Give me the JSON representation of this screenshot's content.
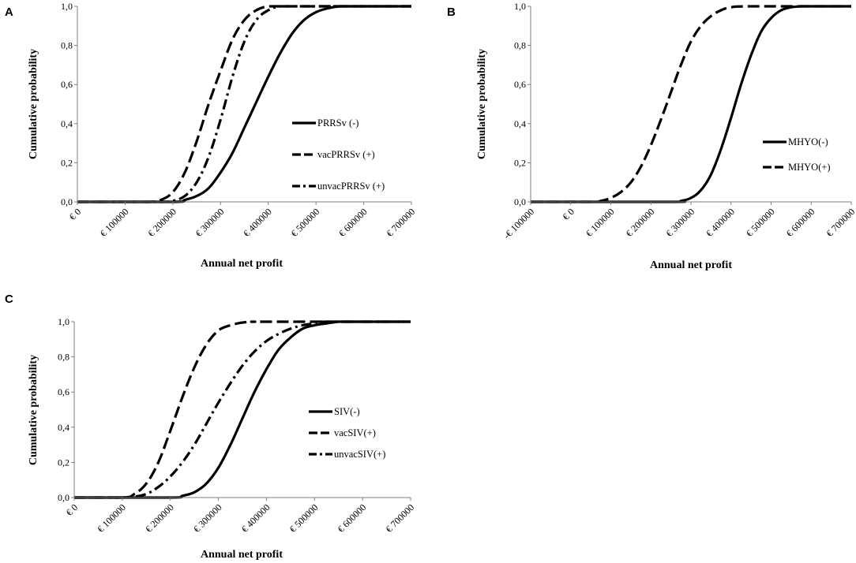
{
  "chart_data": [
    {
      "panel": "A",
      "type": "line",
      "title": "",
      "xlabel": "Annual net profit",
      "ylabel": "Cumulative probability",
      "xticks": [
        0,
        100000,
        200000,
        300000,
        400000,
        500000,
        600000,
        700000
      ],
      "xtick_labels": [
        "€ 0",
        "€ 100000",
        "€ 200000",
        "€ 300000",
        "€ 400000",
        "€ 500000",
        "€ 600000",
        "€ 700000"
      ],
      "yticks": [
        0,
        0.2,
        0.4,
        0.6,
        0.8,
        1.0
      ],
      "ytick_labels": [
        "0,0",
        "0,2",
        "0,4",
        "0,6",
        "0,8",
        "1,0"
      ],
      "xlim": [
        0,
        700000
      ],
      "ylim": [
        0,
        1
      ],
      "legend_position": "right-middle",
      "series": [
        {
          "name": "PRRSv (-)",
          "style": "solid",
          "x": [
            0,
            200000,
            225000,
            250000,
            275000,
            300000,
            325000,
            350000,
            375000,
            400000,
            425000,
            450000,
            475000,
            500000,
            525000,
            550000,
            575000,
            600000,
            650000,
            700000
          ],
          "y": [
            0,
            0,
            0.01,
            0.03,
            0.07,
            0.15,
            0.25,
            0.38,
            0.51,
            0.64,
            0.76,
            0.86,
            0.93,
            0.97,
            0.99,
            1.0,
            1.0,
            1.0,
            1.0,
            1.0
          ]
        },
        {
          "name": "vacPRRSv (+)",
          "style": "dashed",
          "x": [
            0,
            150000,
            175000,
            200000,
            225000,
            250000,
            275000,
            300000,
            325000,
            350000,
            375000,
            400000,
            425000,
            450000,
            500000,
            700000
          ],
          "y": [
            0,
            0,
            0.01,
            0.05,
            0.15,
            0.31,
            0.5,
            0.67,
            0.83,
            0.93,
            0.98,
            1.0,
            1.0,
            1.0,
            1.0,
            1.0
          ]
        },
        {
          "name": "unvacPRRSv (+)",
          "style": "dash-dot",
          "x": [
            0,
            175000,
            200000,
            225000,
            250000,
            275000,
            300000,
            325000,
            350000,
            375000,
            400000,
            425000,
            450000,
            475000,
            500000,
            700000
          ],
          "y": [
            0,
            0,
            0.005,
            0.03,
            0.1,
            0.23,
            0.42,
            0.64,
            0.82,
            0.93,
            0.98,
            1.0,
            1.0,
            1.0,
            1.0,
            1.0
          ]
        }
      ]
    },
    {
      "panel": "B",
      "type": "line",
      "title": "",
      "xlabel": "Annual net profit",
      "ylabel": "Cumulative probability",
      "xticks": [
        -100000,
        0,
        100000,
        200000,
        300000,
        400000,
        500000,
        600000,
        700000
      ],
      "xtick_labels": [
        "-€ 100000",
        "€ 0",
        "€ 100000",
        "€ 200000",
        "€ 300000",
        "€ 400000",
        "€ 500000",
        "€ 600000",
        "€ 700000"
      ],
      "yticks": [
        0,
        0.2,
        0.4,
        0.6,
        0.8,
        1.0
      ],
      "ytick_labels": [
        "0,0",
        "0,2",
        "0,4",
        "0,6",
        "0,8",
        "1,0"
      ],
      "xlim": [
        -100000,
        700000
      ],
      "ylim": [
        0,
        1
      ],
      "legend_position": "right-middle",
      "series": [
        {
          "name": "MHYO(-)",
          "style": "solid",
          "x": [
            -100000,
            250000,
            275000,
            300000,
            325000,
            350000,
            375000,
            400000,
            425000,
            450000,
            475000,
            500000,
            525000,
            550000,
            575000,
            600000,
            700000
          ],
          "y": [
            0,
            0,
            0.005,
            0.02,
            0.06,
            0.14,
            0.27,
            0.43,
            0.6,
            0.75,
            0.87,
            0.94,
            0.98,
            0.995,
            1.0,
            1.0,
            1.0
          ]
        },
        {
          "name": "MHYO(+)",
          "style": "dashed",
          "x": [
            -100000,
            50000,
            75000,
            100000,
            125000,
            150000,
            175000,
            200000,
            225000,
            250000,
            275000,
            300000,
            325000,
            350000,
            375000,
            400000,
            450000,
            700000
          ],
          "y": [
            0,
            0,
            0.005,
            0.02,
            0.05,
            0.1,
            0.18,
            0.29,
            0.42,
            0.56,
            0.7,
            0.82,
            0.9,
            0.95,
            0.98,
            0.995,
            1.0,
            1.0
          ]
        }
      ]
    },
    {
      "panel": "C",
      "type": "line",
      "title": "",
      "xlabel": "Annual net profit",
      "ylabel": "Cumulative probability",
      "xticks": [
        0,
        100000,
        200000,
        300000,
        400000,
        500000,
        600000,
        700000
      ],
      "xtick_labels": [
        "€ 0",
        "€ 100000",
        "€ 200000",
        "€ 300000",
        "€ 400000",
        "€ 500000",
        "€ 600000",
        "€ 700000"
      ],
      "yticks": [
        0,
        0.2,
        0.4,
        0.6,
        0.8,
        1.0
      ],
      "ytick_labels": [
        "0,0",
        "0,2",
        "0,4",
        "0,6",
        "0,8",
        "1,0"
      ],
      "xlim": [
        0,
        700000
      ],
      "ylim": [
        0,
        1
      ],
      "legend_position": "right-middle",
      "series": [
        {
          "name": "SIV(-)",
          "style": "solid",
          "x": [
            0,
            200000,
            225000,
            250000,
            275000,
            300000,
            325000,
            350000,
            375000,
            400000,
            425000,
            450000,
            475000,
            500000,
            525000,
            550000,
            575000,
            600000,
            700000
          ],
          "y": [
            0,
            0,
            0.01,
            0.03,
            0.08,
            0.17,
            0.3,
            0.45,
            0.6,
            0.73,
            0.84,
            0.91,
            0.96,
            0.98,
            0.99,
            1.0,
            1.0,
            1.0,
            1.0
          ]
        },
        {
          "name": "vacSIV(+)",
          "style": "dashed",
          "x": [
            0,
            100000,
            125000,
            150000,
            175000,
            200000,
            225000,
            250000,
            275000,
            300000,
            325000,
            350000,
            375000,
            400000,
            700000
          ],
          "y": [
            0,
            0,
            0.02,
            0.08,
            0.2,
            0.38,
            0.57,
            0.74,
            0.87,
            0.95,
            0.98,
            0.995,
            1.0,
            1.0,
            1.0
          ]
        },
        {
          "name": "unvacSIV(+)",
          "style": "dash-dot",
          "x": [
            0,
            100000,
            125000,
            150000,
            175000,
            200000,
            225000,
            250000,
            275000,
            300000,
            325000,
            350000,
            375000,
            400000,
            425000,
            450000,
            475000,
            500000,
            525000,
            700000
          ],
          "y": [
            0,
            0,
            0.005,
            0.02,
            0.06,
            0.12,
            0.2,
            0.3,
            0.42,
            0.54,
            0.65,
            0.75,
            0.83,
            0.89,
            0.93,
            0.96,
            0.98,
            0.99,
            1.0,
            1.0
          ]
        }
      ]
    }
  ]
}
